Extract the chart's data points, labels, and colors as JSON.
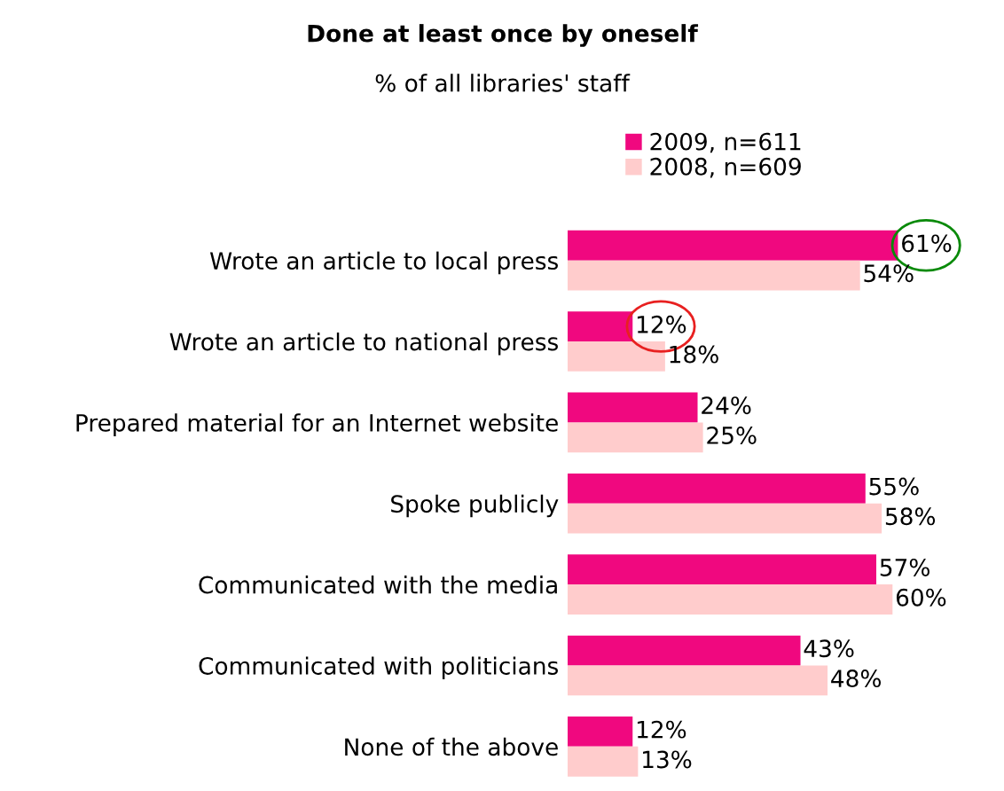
{
  "chart_data": {
    "type": "bar",
    "orientation": "horizontal",
    "title": "Done at least once by oneself",
    "subtitle": "% of all libraries' staff",
    "categories": [
      "Wrote an article to local press",
      "Wrote an article to national press",
      "Prepared material for an Internet website",
      "Spoke publicly",
      "Communicated with the media",
      "Communicated with politicians",
      "None of the above"
    ],
    "series": [
      {
        "name": "2009, n=611",
        "color": "#f0087f",
        "values": [
          61,
          12,
          24,
          55,
          57,
          43,
          12
        ],
        "value_labels": [
          "61%",
          "12%",
          "24%",
          "55%",
          "57%",
          "43%",
          "12%"
        ]
      },
      {
        "name": "2008, n=609",
        "color": "#ffcccc",
        "values": [
          54,
          18,
          25,
          58,
          60,
          48,
          13
        ],
        "value_labels": [
          "54%",
          "18%",
          "25%",
          "58%",
          "60%",
          "48%",
          "13%"
        ]
      }
    ],
    "tick_labels": "y",
    "grid": false,
    "legend": "top"
  }
}
